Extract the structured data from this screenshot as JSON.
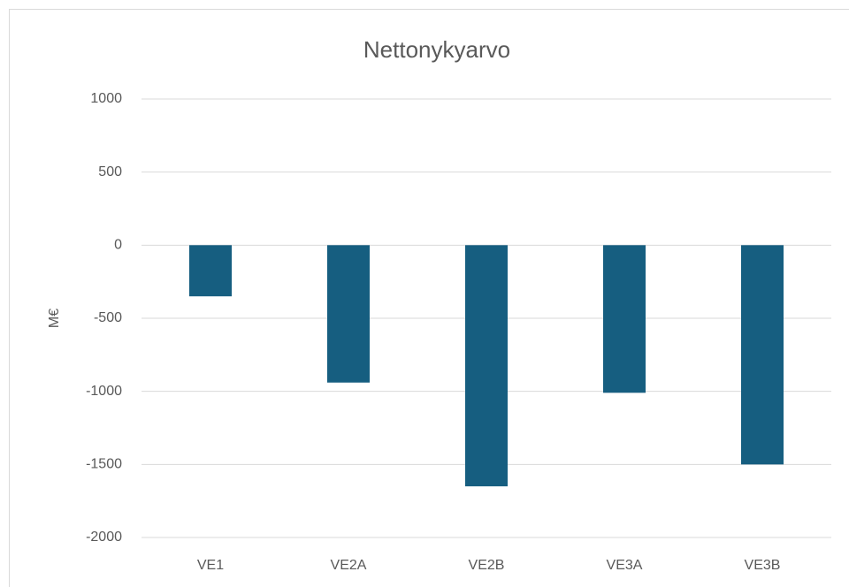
{
  "chart_data": {
    "type": "bar",
    "title": "Nettonykyarvo",
    "y_label": "M€",
    "categories": [
      "VE1",
      "VE2A",
      "VE2B",
      "VE3A",
      "VE3B"
    ],
    "values": [
      -350,
      -940,
      -1650,
      -1010,
      -1500
    ],
    "color": "#165e80",
    "ylim": [
      -2000,
      1000
    ],
    "yticks": [
      -2000,
      -1500,
      -1000,
      -500,
      0,
      500,
      1000
    ],
    "grid": true
  }
}
